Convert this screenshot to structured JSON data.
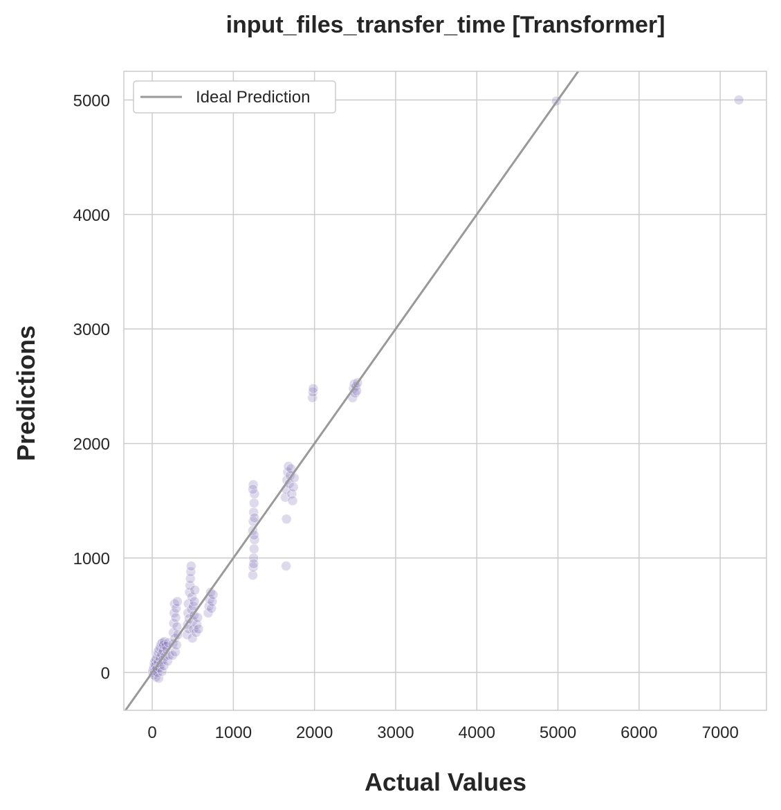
{
  "chart_data": {
    "type": "scatter",
    "title": "input_files_transfer_time [Transformer]",
    "xlabel": "Actual Values",
    "ylabel": "Predictions",
    "xlim": [
      -350,
      7570
    ],
    "ylim": [
      -330,
      5250
    ],
    "xticks": [
      0,
      1000,
      2000,
      3000,
      4000,
      5000,
      6000,
      7000
    ],
    "yticks": [
      0,
      1000,
      2000,
      3000,
      4000,
      5000
    ],
    "grid": true,
    "legend_position": "top-left",
    "ideal_line": {
      "label": "Ideal Prediction",
      "color": "#999999"
    },
    "point_color": "#7b6bb3",
    "point_opacity": 0.25,
    "series": [
      {
        "points": [
          [
            5,
            0
          ],
          [
            10,
            20
          ],
          [
            15,
            -20
          ],
          [
            20,
            50
          ],
          [
            25,
            80
          ],
          [
            30,
            10
          ],
          [
            35,
            100
          ],
          [
            40,
            60
          ],
          [
            45,
            -40
          ],
          [
            50,
            120
          ],
          [
            55,
            30
          ],
          [
            60,
            150
          ],
          [
            65,
            0
          ],
          [
            70,
            180
          ],
          [
            75,
            90
          ],
          [
            80,
            -50
          ],
          [
            85,
            200
          ],
          [
            90,
            40
          ],
          [
            95,
            130
          ],
          [
            100,
            220
          ],
          [
            105,
            70
          ],
          [
            110,
            250
          ],
          [
            115,
            160
          ],
          [
            120,
            10
          ],
          [
            125,
            260
          ],
          [
            130,
            110
          ],
          [
            135,
            190
          ],
          [
            140,
            240
          ],
          [
            145,
            60
          ],
          [
            150,
            270
          ],
          [
            160,
            140
          ],
          [
            170,
            230
          ],
          [
            180,
            200
          ],
          [
            190,
            100
          ],
          [
            200,
            260
          ],
          [
            210,
            150
          ],
          [
            250,
            150
          ],
          [
            255,
            250
          ],
          [
            260,
            350
          ],
          [
            265,
            430
          ],
          [
            270,
            520
          ],
          [
            275,
            600
          ],
          [
            280,
            300
          ],
          [
            285,
            180
          ],
          [
            290,
            480
          ],
          [
            295,
            560
          ],
          [
            300,
            240
          ],
          [
            305,
            400
          ],
          [
            310,
            620
          ],
          [
            315,
            330
          ],
          [
            430,
            330
          ],
          [
            435,
            420
          ],
          [
            440,
            520
          ],
          [
            445,
            600
          ],
          [
            450,
            380
          ],
          [
            455,
            470
          ],
          [
            460,
            700
          ],
          [
            465,
            760
          ],
          [
            470,
            820
          ],
          [
            475,
            880
          ],
          [
            480,
            930
          ],
          [
            485,
            550
          ],
          [
            490,
            660
          ],
          [
            495,
            300
          ],
          [
            500,
            450
          ],
          [
            505,
            580
          ],
          [
            510,
            380
          ],
          [
            515,
            500
          ],
          [
            520,
            620
          ],
          [
            525,
            720
          ],
          [
            540,
            350
          ],
          [
            550,
            420
          ],
          [
            560,
            480
          ],
          [
            570,
            380
          ],
          [
            690,
            520
          ],
          [
            700,
            580
          ],
          [
            710,
            640
          ],
          [
            720,
            700
          ],
          [
            730,
            560
          ],
          [
            740,
            620
          ],
          [
            750,
            680
          ],
          [
            1240,
            850
          ],
          [
            1245,
            920
          ],
          [
            1250,
            1000
          ],
          [
            1255,
            1080
          ],
          [
            1260,
            1160
          ],
          [
            1240,
            1240
          ],
          [
            1245,
            1320
          ],
          [
            1250,
            1400
          ],
          [
            1255,
            1480
          ],
          [
            1260,
            1560
          ],
          [
            1245,
            1640
          ],
          [
            1250,
            950
          ],
          [
            1255,
            1200
          ],
          [
            1260,
            1350
          ],
          [
            1240,
            1600
          ],
          [
            1650,
            930
          ],
          [
            1655,
            1340
          ],
          [
            1640,
            1530
          ],
          [
            1650,
            1600
          ],
          [
            1660,
            1680
          ],
          [
            1670,
            1750
          ],
          [
            1680,
            1800
          ],
          [
            1690,
            1650
          ],
          [
            1700,
            1720
          ],
          [
            1710,
            1780
          ],
          [
            1720,
            1560
          ],
          [
            1730,
            1500
          ],
          [
            1740,
            1620
          ],
          [
            1750,
            1700
          ],
          [
            1975,
            2400
          ],
          [
            1980,
            2450
          ],
          [
            1985,
            2480
          ],
          [
            2470,
            2400
          ],
          [
            2480,
            2480
          ],
          [
            2490,
            2520
          ],
          [
            2500,
            2440
          ],
          [
            2510,
            2500
          ],
          [
            2520,
            2460
          ],
          [
            2530,
            2530
          ],
          [
            4980,
            4990
          ],
          [
            7230,
            5000
          ]
        ]
      }
    ]
  }
}
